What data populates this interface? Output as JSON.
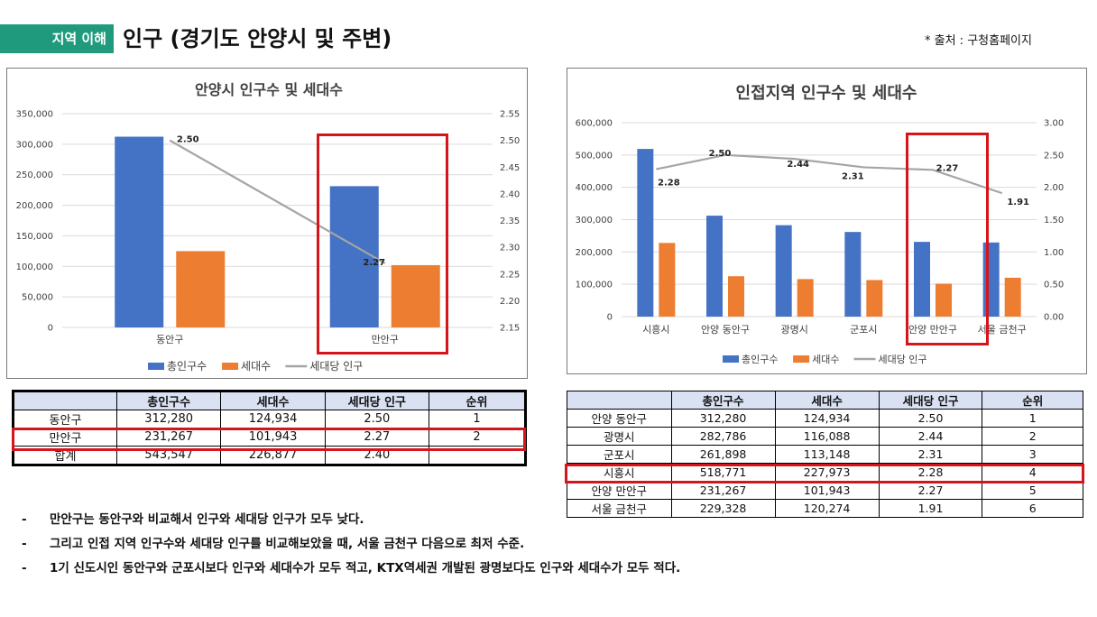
{
  "header": {
    "tag": "지역 이해",
    "title": "인구 (경기도 안양시 및 주변)",
    "source": "* 출처 : 구청홈페이지"
  },
  "colors": {
    "blue": "#4472c4",
    "orange": "#ed7d31",
    "line": "#a5a5a5",
    "accent": "#1f9a7c",
    "highlight": "#d6141b",
    "header_bg": "#d9e1f2"
  },
  "left_table": {
    "headers": [
      "",
      "총인구수",
      "세대수",
      "세대당 인구",
      "순위"
    ],
    "rows": [
      [
        "동안구",
        "312,280",
        "124,934",
        "2.50",
        "1"
      ],
      [
        "만안구",
        "231,267",
        "101,943",
        "2.27",
        "2"
      ],
      [
        "합계",
        "543,547",
        "226,877",
        "2.40",
        ""
      ]
    ]
  },
  "right_table": {
    "headers": [
      "",
      "총인구수",
      "세대수",
      "세대당 인구",
      "순위"
    ],
    "rows": [
      [
        "안양 동안구",
        "312,280",
        "124,934",
        "2.50",
        "1"
      ],
      [
        "광명시",
        "282,786",
        "116,088",
        "2.44",
        "2"
      ],
      [
        "군포시",
        "261,898",
        "113,148",
        "2.31",
        "3"
      ],
      [
        "시흥시",
        "518,771",
        "227,973",
        "2.28",
        "4"
      ],
      [
        "안양 만안구",
        "231,267",
        "101,943",
        "2.27",
        "5"
      ],
      [
        "서울 금천구",
        "229,328",
        "120,274",
        "1.91",
        "6"
      ]
    ]
  },
  "bullets": [
    {
      "dash": "-",
      "text": "만안구는 동안구와 비교해서 인구와 세대당 인구가 모두 낮다."
    },
    {
      "dash": "-",
      "text": "그리고 인접 지역 인구수와 세대당 인구를 비교해보았을 때, 서울 금천구 다음으로 최저 수준."
    },
    {
      "dash": "-",
      "text": "1기 신도시인 동안구와 군포시보다 인구와 세대수가 모두 적고, KTX역세권 개발된 광명보다도 인구와 세대수가 모두 적다."
    }
  ],
  "chart_data": [
    {
      "type": "bar",
      "title": "안양시 인구수 및 세대수",
      "categories": [
        "동안구",
        "만안구"
      ],
      "series": [
        {
          "name": "총인구수",
          "type": "bar",
          "axis": "left",
          "values": [
            312280,
            231267
          ]
        },
        {
          "name": "세대수",
          "type": "bar",
          "axis": "left",
          "values": [
            124934,
            101943
          ]
        },
        {
          "name": "세대당 인구",
          "type": "line",
          "axis": "right",
          "values": [
            2.5,
            2.27
          ]
        }
      ],
      "data_labels": [
        "2.50",
        "2.27"
      ],
      "ylim": [
        0,
        350000
      ],
      "y2lim": [
        2.15,
        2.55
      ],
      "yticks": [
        "0",
        "50,000",
        "100,000",
        "150,000",
        "200,000",
        "250,000",
        "300,000",
        "350,000"
      ],
      "y2ticks": [
        "2.15",
        "2.20",
        "2.25",
        "2.30",
        "2.35",
        "2.40",
        "2.45",
        "2.50",
        "2.55"
      ],
      "legend": "bottom",
      "grid": true
    },
    {
      "type": "bar",
      "title": "인접지역 인구수 및 세대수",
      "categories": [
        "시흥시",
        "안양 동안구",
        "광명시",
        "군포시",
        "안양 만안구",
        "서울 금천구"
      ],
      "series": [
        {
          "name": "총인구수",
          "type": "bar",
          "axis": "left",
          "values": [
            518771,
            312280,
            282786,
            261898,
            231267,
            229328
          ]
        },
        {
          "name": "세대수",
          "type": "bar",
          "axis": "left",
          "values": [
            227973,
            124934,
            116088,
            113148,
            101943,
            120274
          ]
        },
        {
          "name": "세대당 인구",
          "type": "line",
          "axis": "right",
          "values": [
            2.28,
            2.5,
            2.44,
            2.31,
            2.27,
            1.91
          ]
        }
      ],
      "data_labels": [
        "2.28",
        "2.50",
        "2.44",
        "2.31",
        "2.27",
        "1.91"
      ],
      "ylim": [
        0,
        600000
      ],
      "y2lim": [
        0,
        3
      ],
      "yticks": [
        "0",
        "100,000",
        "200,000",
        "300,000",
        "400,000",
        "500,000",
        "600,000"
      ],
      "y2ticks": [
        "0.00",
        "0.50",
        "1.00",
        "1.50",
        "2.00",
        "2.50",
        "3.00"
      ],
      "legend": "bottom",
      "grid": true
    }
  ]
}
